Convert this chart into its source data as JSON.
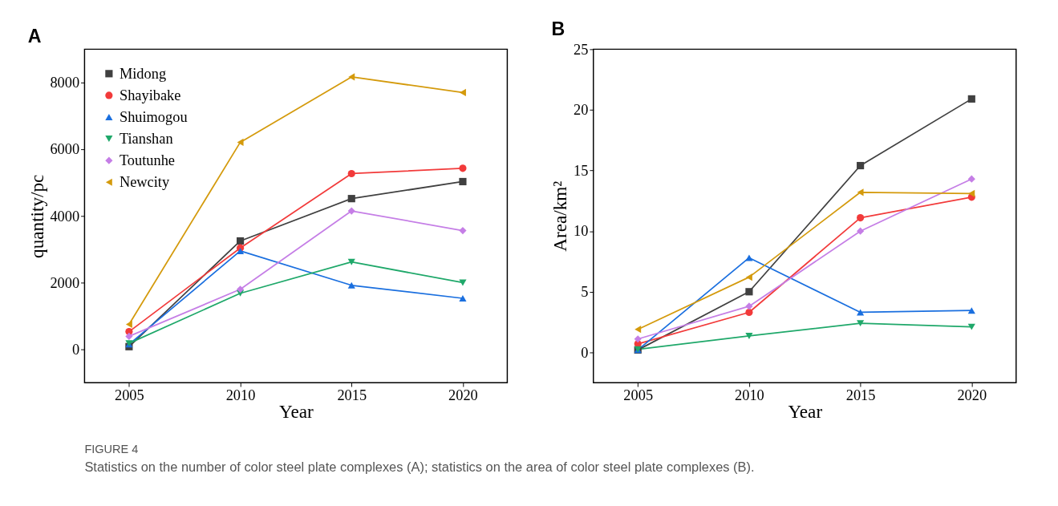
{
  "chart_data": [
    {
      "type": "line",
      "title": "A",
      "xlabel": "Year",
      "ylabel": "quantity/pc",
      "x": [
        2005,
        2010,
        2015,
        2020
      ],
      "xlim": [
        2003,
        2022
      ],
      "xticks": [
        2005,
        2010,
        2015,
        2020
      ],
      "ylim": [
        -1000,
        9000
      ],
      "yticks": [
        0,
        2000,
        4000,
        6000,
        8000
      ],
      "grid": false,
      "legend": "top left",
      "line_style": "solid",
      "annotations": [
        "FIGURE 4",
        "Statistics on the number of color steel plate complexes (A); statistics on the area of color steel plate complexes (B)."
      ],
      "series": [
        {
          "name": "Midong",
          "color": "#404040",
          "marker": "square",
          "values": [
            80,
            3250,
            4520,
            5030
          ]
        },
        {
          "name": "Shayibake",
          "color": "#f23a3a",
          "marker": "circle",
          "values": [
            530,
            3040,
            5270,
            5430
          ]
        },
        {
          "name": "Shuimogou",
          "color": "#1a6fdf",
          "marker": "triangle",
          "values": [
            150,
            2950,
            1920,
            1530
          ]
        },
        {
          "name": "Tianshan",
          "color": "#1fa86a",
          "marker": "triangle-down",
          "values": [
            180,
            1680,
            2620,
            2000
          ]
        },
        {
          "name": "Toutunhe",
          "color": "#c57ee6",
          "marker": "diamond",
          "values": [
            390,
            1800,
            4150,
            3560
          ]
        },
        {
          "name": "Newcity",
          "color": "#d49a0c",
          "marker": "triangle-left",
          "values": [
            750,
            6210,
            8170,
            7700
          ]
        }
      ]
    },
    {
      "type": "line",
      "title": "B",
      "xlabel": "Year",
      "ylabel": "Area/km²",
      "x": [
        2005,
        2010,
        2015,
        2020
      ],
      "xlim": [
        2003,
        2022
      ],
      "xticks": [
        2005,
        2010,
        2015,
        2020
      ],
      "ylim": [
        -2.5,
        25
      ],
      "yticks": [
        0,
        5,
        10,
        15,
        20,
        25
      ],
      "grid": false,
      "legend": "top left",
      "line_style": "solid",
      "series": [
        {
          "name": "Midong",
          "color": "#404040",
          "marker": "square",
          "values": [
            0.2,
            5.0,
            15.4,
            20.9
          ]
        },
        {
          "name": "Shayibake",
          "color": "#f23a3a",
          "marker": "circle",
          "values": [
            0.7,
            3.3,
            11.1,
            12.8
          ]
        },
        {
          "name": "Shuimogou",
          "color": "#1a6fdf",
          "marker": "triangle",
          "values": [
            0.2,
            7.8,
            3.3,
            3.45
          ]
        },
        {
          "name": "Tianshan",
          "color": "#1fa86a",
          "marker": "triangle-down",
          "values": [
            0.25,
            1.35,
            2.4,
            2.1
          ]
        },
        {
          "name": "Toutunhe",
          "color": "#c57ee6",
          "marker": "diamond",
          "values": [
            1.1,
            3.8,
            10.0,
            14.3
          ]
        },
        {
          "name": "Newcity",
          "color": "#d49a0c",
          "marker": "triangle-left",
          "values": [
            1.9,
            6.2,
            13.2,
            13.1
          ]
        }
      ]
    }
  ]
}
